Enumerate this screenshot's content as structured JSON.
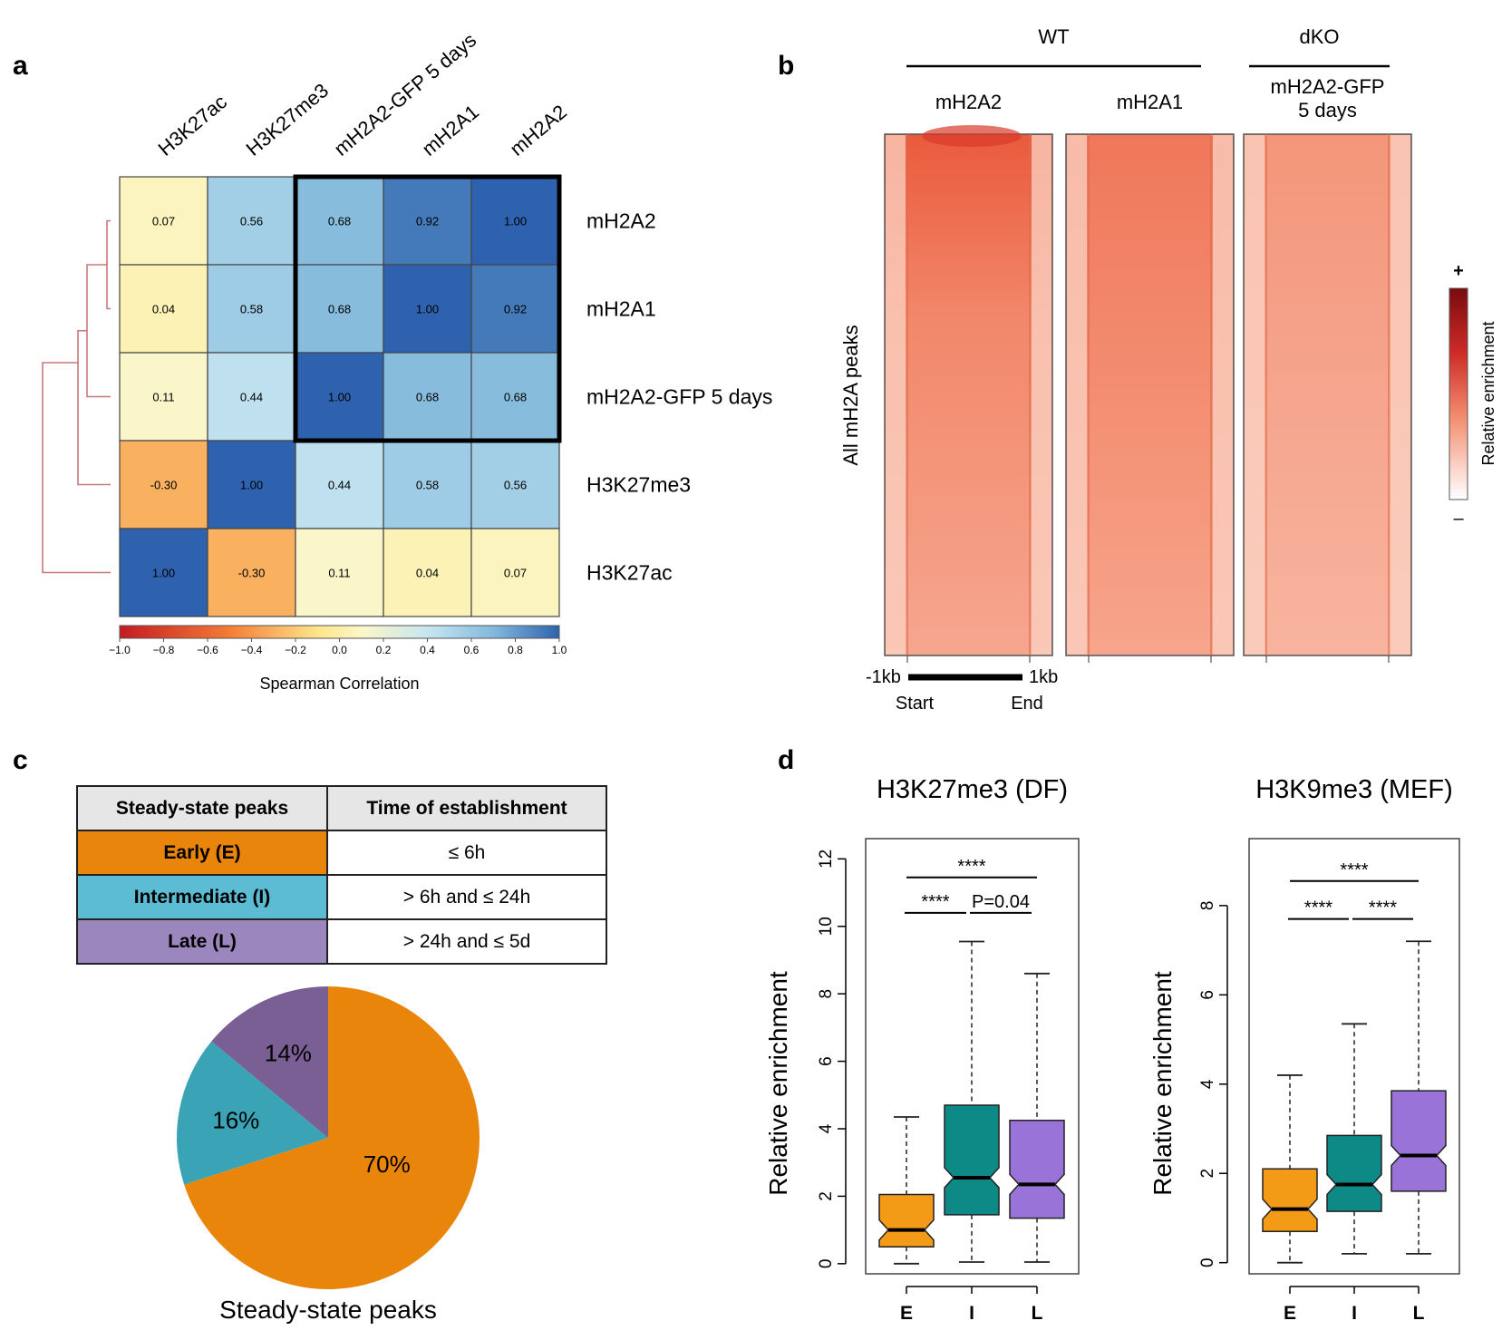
{
  "panels": {
    "a": "a",
    "b": "b",
    "c": "c",
    "d": "d"
  },
  "colors": {
    "early": "#e8850a",
    "intermediate": "#3aa3b5",
    "late": "#7a5f94",
    "inter_table": "#5bbcd3",
    "late_table": "#9b86be",
    "box_early": "#f39a17",
    "box_inter": "#0e8a86",
    "box_late": "#9a73d8",
    "dendro": "#c9787a"
  },
  "chart_data": [
    {
      "type": "heatmap",
      "panel": "a",
      "title": "",
      "col_labels": [
        "H3K27ac",
        "H3K27me3",
        "mH2A2-GFP 5 days",
        "mH2A1",
        "mH2A2"
      ],
      "row_labels": [
        "mH2A2",
        "mH2A1",
        "mH2A2-GFP 5 days",
        "H3K27me3",
        "H3K27ac"
      ],
      "values": [
        [
          0.07,
          0.56,
          0.68,
          0.92,
          1.0
        ],
        [
          0.04,
          0.58,
          0.68,
          1.0,
          0.92
        ],
        [
          0.11,
          0.44,
          1.0,
          0.68,
          0.68
        ],
        [
          -0.3,
          1.0,
          0.44,
          0.58,
          0.56
        ],
        [
          1.0,
          -0.3,
          0.11,
          0.04,
          0.07
        ]
      ],
      "value_labels": [
        [
          "0.07",
          "0.56",
          "0.68",
          "0.92",
          "1.00"
        ],
        [
          "0.04",
          "0.58",
          "0.68",
          "1.00",
          "0.92"
        ],
        [
          "0.11",
          "0.44",
          "1.00",
          "0.68",
          "0.68"
        ],
        [
          "-0.30",
          "1.00",
          "0.44",
          "0.58",
          "0.56"
        ],
        [
          "1.00",
          "-0.30",
          "0.11",
          "0.04",
          "0.07"
        ]
      ],
      "colorbar": {
        "label": "Spearman Correlation",
        "range": [
          -1.0,
          1.0
        ],
        "ticks": [
          "−1.0",
          "−0.8",
          "−0.6",
          "−0.4",
          "−0.2",
          "0.0",
          "0.2",
          "0.4",
          "0.6",
          "0.8",
          "1.0"
        ]
      },
      "highlight": {
        "rows": [
          0,
          2
        ],
        "cols": [
          2,
          4
        ]
      }
    },
    {
      "type": "heatmap",
      "panel": "b",
      "groups": [
        {
          "name": "WT",
          "columns": [
            "mH2A2",
            "mH2A1"
          ]
        },
        {
          "name": "dKO",
          "columns": [
            "mH2A2-GFP 5 days"
          ]
        }
      ],
      "columns": [
        "mH2A2",
        "mH2A1",
        "mH2A2-GFP\n5 days"
      ],
      "column_intensity": [
        1.0,
        0.78,
        0.6
      ],
      "ylabel": "All mH2A peaks",
      "x_ticks": [
        "-1kb",
        "1kb"
      ],
      "x_sub": [
        "Start",
        "End"
      ],
      "colorbar": {
        "label": "Relative enrichment",
        "max_label": "+",
        "min_label": "–"
      }
    },
    {
      "type": "table",
      "panel": "c",
      "headers": [
        "Steady-state peaks",
        "Time of establishment"
      ],
      "rows": [
        [
          "Early (E)",
          "≤ 6h"
        ],
        [
          "Intermediate (I)",
          "> 6h and ≤ 24h"
        ],
        [
          "Late (L)",
          "> 24h and ≤ 5d"
        ]
      ]
    },
    {
      "type": "pie",
      "panel": "c",
      "title": "Steady-state peaks",
      "labels": [
        "Early (E)",
        "Intermediate (I)",
        "Late (L)"
      ],
      "values": [
        70,
        16,
        14
      ],
      "value_labels": [
        "70%",
        "16%",
        "14%"
      ]
    },
    {
      "type": "box",
      "panel": "d",
      "title": "H3K27me3 (DF)",
      "ylabel": "Relative enrichment",
      "categories": [
        "E",
        "I",
        "L"
      ],
      "ylim": [
        -0.3,
        12.6
      ],
      "yticks": [
        0,
        2,
        4,
        6,
        8,
        10,
        12
      ],
      "boxes": [
        {
          "min": 0.0,
          "q1": 0.5,
          "median": 1.0,
          "q3": 2.05,
          "max": 4.35
        },
        {
          "min": 0.05,
          "q1": 1.45,
          "median": 2.55,
          "q3": 4.7,
          "max": 9.55
        },
        {
          "min": 0.05,
          "q1": 1.35,
          "median": 2.35,
          "q3": 4.25,
          "max": 8.6
        }
      ],
      "comparisons": [
        {
          "from": 0,
          "to": 2,
          "level": 11.45,
          "label": "****"
        },
        {
          "from": 0,
          "to": 1,
          "level": 10.4,
          "label": "****"
        },
        {
          "from": 1,
          "to": 2,
          "level": 10.4,
          "label": "P=0.04"
        }
      ]
    },
    {
      "type": "box",
      "panel": "d",
      "title": "H3K9me3 (MEF)",
      "ylabel": "Relative enrichment",
      "categories": [
        "E",
        "I",
        "L"
      ],
      "ylim": [
        -0.25,
        9.5
      ],
      "yticks": [
        0,
        2,
        4,
        6,
        8
      ],
      "boxes": [
        {
          "min": 0.0,
          "q1": 0.7,
          "median": 1.2,
          "q3": 2.1,
          "max": 4.2
        },
        {
          "min": 0.2,
          "q1": 1.15,
          "median": 1.75,
          "q3": 2.85,
          "max": 5.35
        },
        {
          "min": 0.2,
          "q1": 1.6,
          "median": 2.4,
          "q3": 3.85,
          "max": 7.2
        }
      ],
      "comparisons": [
        {
          "from": 0,
          "to": 2,
          "level": 8.55,
          "label": "****"
        },
        {
          "from": 0,
          "to": 1,
          "level": 7.7,
          "label": "****"
        },
        {
          "from": 1,
          "to": 2,
          "level": 7.7,
          "label": "****"
        }
      ]
    }
  ]
}
